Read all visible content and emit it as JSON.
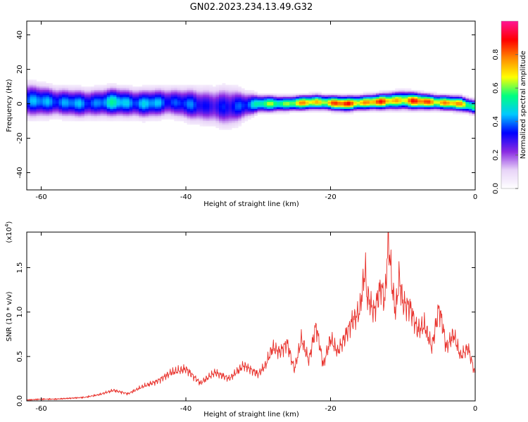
{
  "figure": {
    "title": "GN02.2023.234.13.49.G32"
  },
  "chart_data": [
    {
      "type": "heatmap",
      "title": "GN02.2023.234.13.49.G32",
      "xlabel": "Height of straight line (km)",
      "ylabel": "Frequency (Hz)",
      "xlim": [
        -62,
        0
      ],
      "ylim": [
        -50,
        48
      ],
      "xticks": [
        -60,
        -40,
        -20,
        0
      ],
      "yticks": [
        -40,
        -20,
        0,
        20,
        40
      ],
      "colorbar": {
        "label": "Normalized spectral amplitude",
        "range": [
          0,
          1
        ],
        "ticks": [
          0.0,
          0.2,
          0.4,
          0.6,
          0.8
        ],
        "colors": [
          "#ffffff",
          "#e8d4f8",
          "#8a2be2",
          "#0000ff",
          "#00c8ff",
          "#00ff80",
          "#ffff00",
          "#ff8c00",
          "#ff0000",
          "#ff1493"
        ]
      },
      "ridge": {
        "x": [
          -62,
          -58,
          -54,
          -50,
          -46,
          -42,
          -38,
          -34,
          -30,
          -26,
          -22,
          -18,
          -14,
          -10,
          -6,
          -2,
          0
        ],
        "frequency": [
          2,
          1,
          0,
          1,
          0,
          1,
          -1,
          -2,
          0,
          0,
          1,
          0,
          1,
          2,
          1,
          0,
          -2
        ],
        "amplitude": [
          0.45,
          0.5,
          0.45,
          0.55,
          0.5,
          0.45,
          0.4,
          0.35,
          0.6,
          0.75,
          0.85,
          0.95,
          0.9,
          0.9,
          0.95,
          0.8,
          0.7
        ],
        "spread": [
          6,
          5,
          5,
          5,
          5,
          5,
          6,
          7,
          3,
          2.5,
          2.5,
          2.5,
          2.5,
          3,
          2.5,
          2.5,
          2.5
        ]
      }
    },
    {
      "type": "line",
      "xlabel": "Height of straight line (km)",
      "ylabel": "SNR (10 * v/v)",
      "scale_label": "(x10",
      "scale_exponent": "4",
      "scale_close": ")",
      "xlim": [
        -62,
        0
      ],
      "ylim": [
        0,
        1.9
      ],
      "xticks": [
        -60,
        -40,
        -20,
        0
      ],
      "yticks": [
        0.0,
        0.5,
        1.0,
        1.5
      ],
      "yticklabels": [
        "0.0",
        "0.5",
        "1.0",
        "1.5"
      ],
      "color": "#e8302a",
      "series": [
        {
          "x": [
            -62,
            -60,
            -58,
            -56,
            -54,
            -52,
            -50,
            -48,
            -46,
            -44,
            -42,
            -40,
            -38,
            -36,
            -34,
            -32,
            -30,
            -29,
            -28,
            -27,
            -26,
            -25,
            -24,
            -23,
            -22,
            -21,
            -20,
            -19,
            -18,
            -17,
            -16,
            -15.2,
            -15,
            -14,
            -13,
            -12.5,
            -12,
            -11.5,
            -11,
            -10.5,
            -10,
            -9,
            -8,
            -7,
            -6,
            -5,
            -4.5,
            -4,
            -3,
            -2,
            -1,
            -0.5,
            0
          ],
          "values": [
            0.01,
            0.02,
            0.02,
            0.03,
            0.04,
            0.07,
            0.12,
            0.08,
            0.16,
            0.22,
            0.32,
            0.36,
            0.2,
            0.32,
            0.25,
            0.4,
            0.3,
            0.4,
            0.6,
            0.55,
            0.65,
            0.35,
            0.7,
            0.45,
            0.85,
            0.4,
            0.7,
            0.55,
            0.72,
            0.9,
            1.0,
            1.5,
            1.2,
            1.0,
            1.3,
            1.1,
            1.85,
            1.3,
            1.0,
            1.4,
            1.1,
            1.05,
            0.8,
            0.85,
            0.6,
            1.05,
            0.85,
            0.6,
            0.75,
            0.5,
            0.6,
            0.45,
            0.3
          ]
        }
      ]
    }
  ]
}
